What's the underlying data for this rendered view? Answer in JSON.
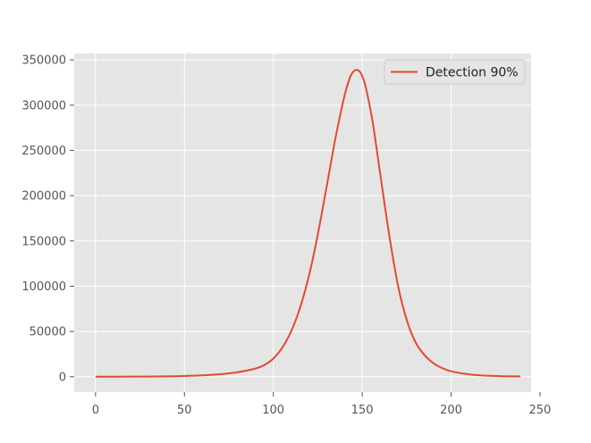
{
  "chart_data": {
    "type": "line",
    "title": "",
    "xlabel": "",
    "ylabel": "",
    "xlim": [
      -12,
      245
    ],
    "ylim": [
      -17000,
      357000
    ],
    "x_ticks": [
      0,
      50,
      100,
      150,
      200,
      250
    ],
    "y_ticks": [
      0,
      50000,
      100000,
      150000,
      200000,
      250000,
      300000,
      350000
    ],
    "grid": true,
    "legend_position": "top-right",
    "series": [
      {
        "name": "Detection 90%",
        "color": "#e24a33",
        "x": [
          0,
          20,
          40,
          50,
          60,
          70,
          80,
          90,
          95,
          100,
          105,
          110,
          115,
          120,
          125,
          130,
          135,
          140,
          143,
          145,
          147,
          149,
          151,
          153,
          156,
          160,
          165,
          170,
          175,
          180,
          185,
          190,
          195,
          200,
          210,
          220,
          230,
          239
        ],
        "y": [
          0,
          100,
          400,
          800,
          1500,
          2700,
          5000,
          9000,
          13000,
          20000,
          32000,
          50000,
          76000,
          111000,
          157000,
          210000,
          264000,
          310000,
          330000,
          337000,
          339000,
          336000,
          327000,
          311000,
          280000,
          226000,
          159000,
          102000,
          63000,
          38000,
          24000,
          15000,
          9500,
          6000,
          2600,
          1100,
          500,
          300
        ]
      }
    ]
  }
}
